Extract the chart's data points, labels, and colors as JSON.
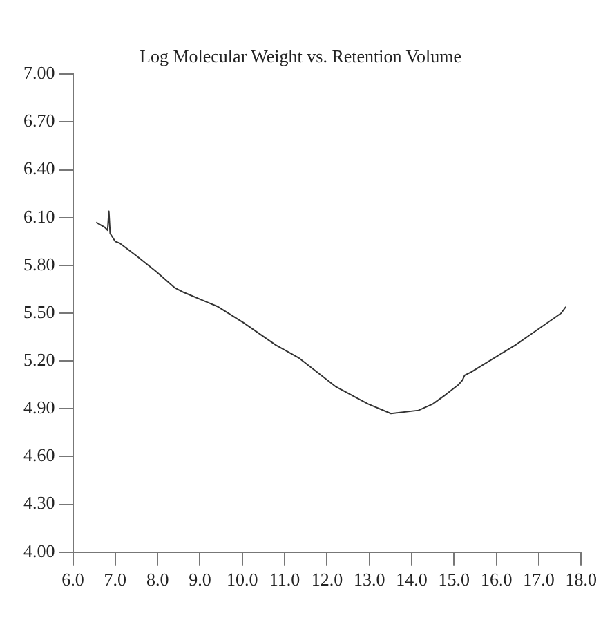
{
  "chart_data": {
    "type": "line",
    "title": "Log Molecular Weight vs. Retention Volume",
    "x": [
      6.55,
      6.75,
      6.82,
      6.85,
      6.88,
      7.0,
      7.1,
      7.5,
      7.97,
      8.4,
      8.62,
      9.16,
      9.43,
      10.03,
      10.79,
      11.33,
      12.2,
      12.97,
      13.51,
      14.16,
      14.5,
      14.81,
      15.1,
      15.2,
      15.25,
      15.4,
      16.45,
      17.53,
      17.64
    ],
    "series": [
      {
        "color": "#333333",
        "values": [
          6.07,
          6.04,
          6.02,
          6.14,
          6.0,
          5.95,
          5.94,
          5.86,
          5.76,
          5.66,
          5.63,
          5.57,
          5.54,
          5.44,
          5.3,
          5.22,
          5.04,
          4.93,
          4.87,
          4.89,
          4.93,
          4.99,
          5.05,
          5.08,
          5.11,
          5.13,
          5.3,
          5.5,
          5.54
        ]
      }
    ],
    "xlim": [
      6.0,
      18.0
    ],
    "xticks": [
      {
        "value": 6,
        "label": "6.0"
      },
      {
        "value": 7,
        "label": "7.0"
      },
      {
        "value": 8,
        "label": "8.0"
      },
      {
        "value": 9,
        "label": "9.0"
      },
      {
        "value": 10,
        "label": "10.0"
      },
      {
        "value": 11,
        "label": "11.0"
      },
      {
        "value": 12,
        "label": "12.0"
      },
      {
        "value": 13,
        "label": "13.0"
      },
      {
        "value": 14,
        "label": "14.0"
      },
      {
        "value": 15,
        "label": "15.0"
      },
      {
        "value": 16,
        "label": "16.0"
      },
      {
        "value": 17,
        "label": "17.0"
      },
      {
        "value": 18,
        "label": "18.0"
      }
    ],
    "ylim": [
      4.0,
      7.0
    ],
    "yticks": [
      {
        "value": 4,
        "label": "4.00"
      },
      {
        "value": 4.3,
        "label": "4.30"
      },
      {
        "value": 4.6,
        "label": "4.60"
      },
      {
        "value": 4.9,
        "label": "4.90"
      },
      {
        "value": 5.2,
        "label": "5.20"
      },
      {
        "value": 5.5,
        "label": "5.50"
      },
      {
        "value": 5.8,
        "label": "5.80"
      },
      {
        "value": 6.1,
        "label": "6.10"
      },
      {
        "value": 6.4,
        "label": "6.40"
      },
      {
        "value": 6.7,
        "label": "6.70"
      },
      {
        "value": 7,
        "label": "7.00"
      }
    ],
    "grid": false,
    "legend": false,
    "marker": "none",
    "line_style": "solid"
  }
}
